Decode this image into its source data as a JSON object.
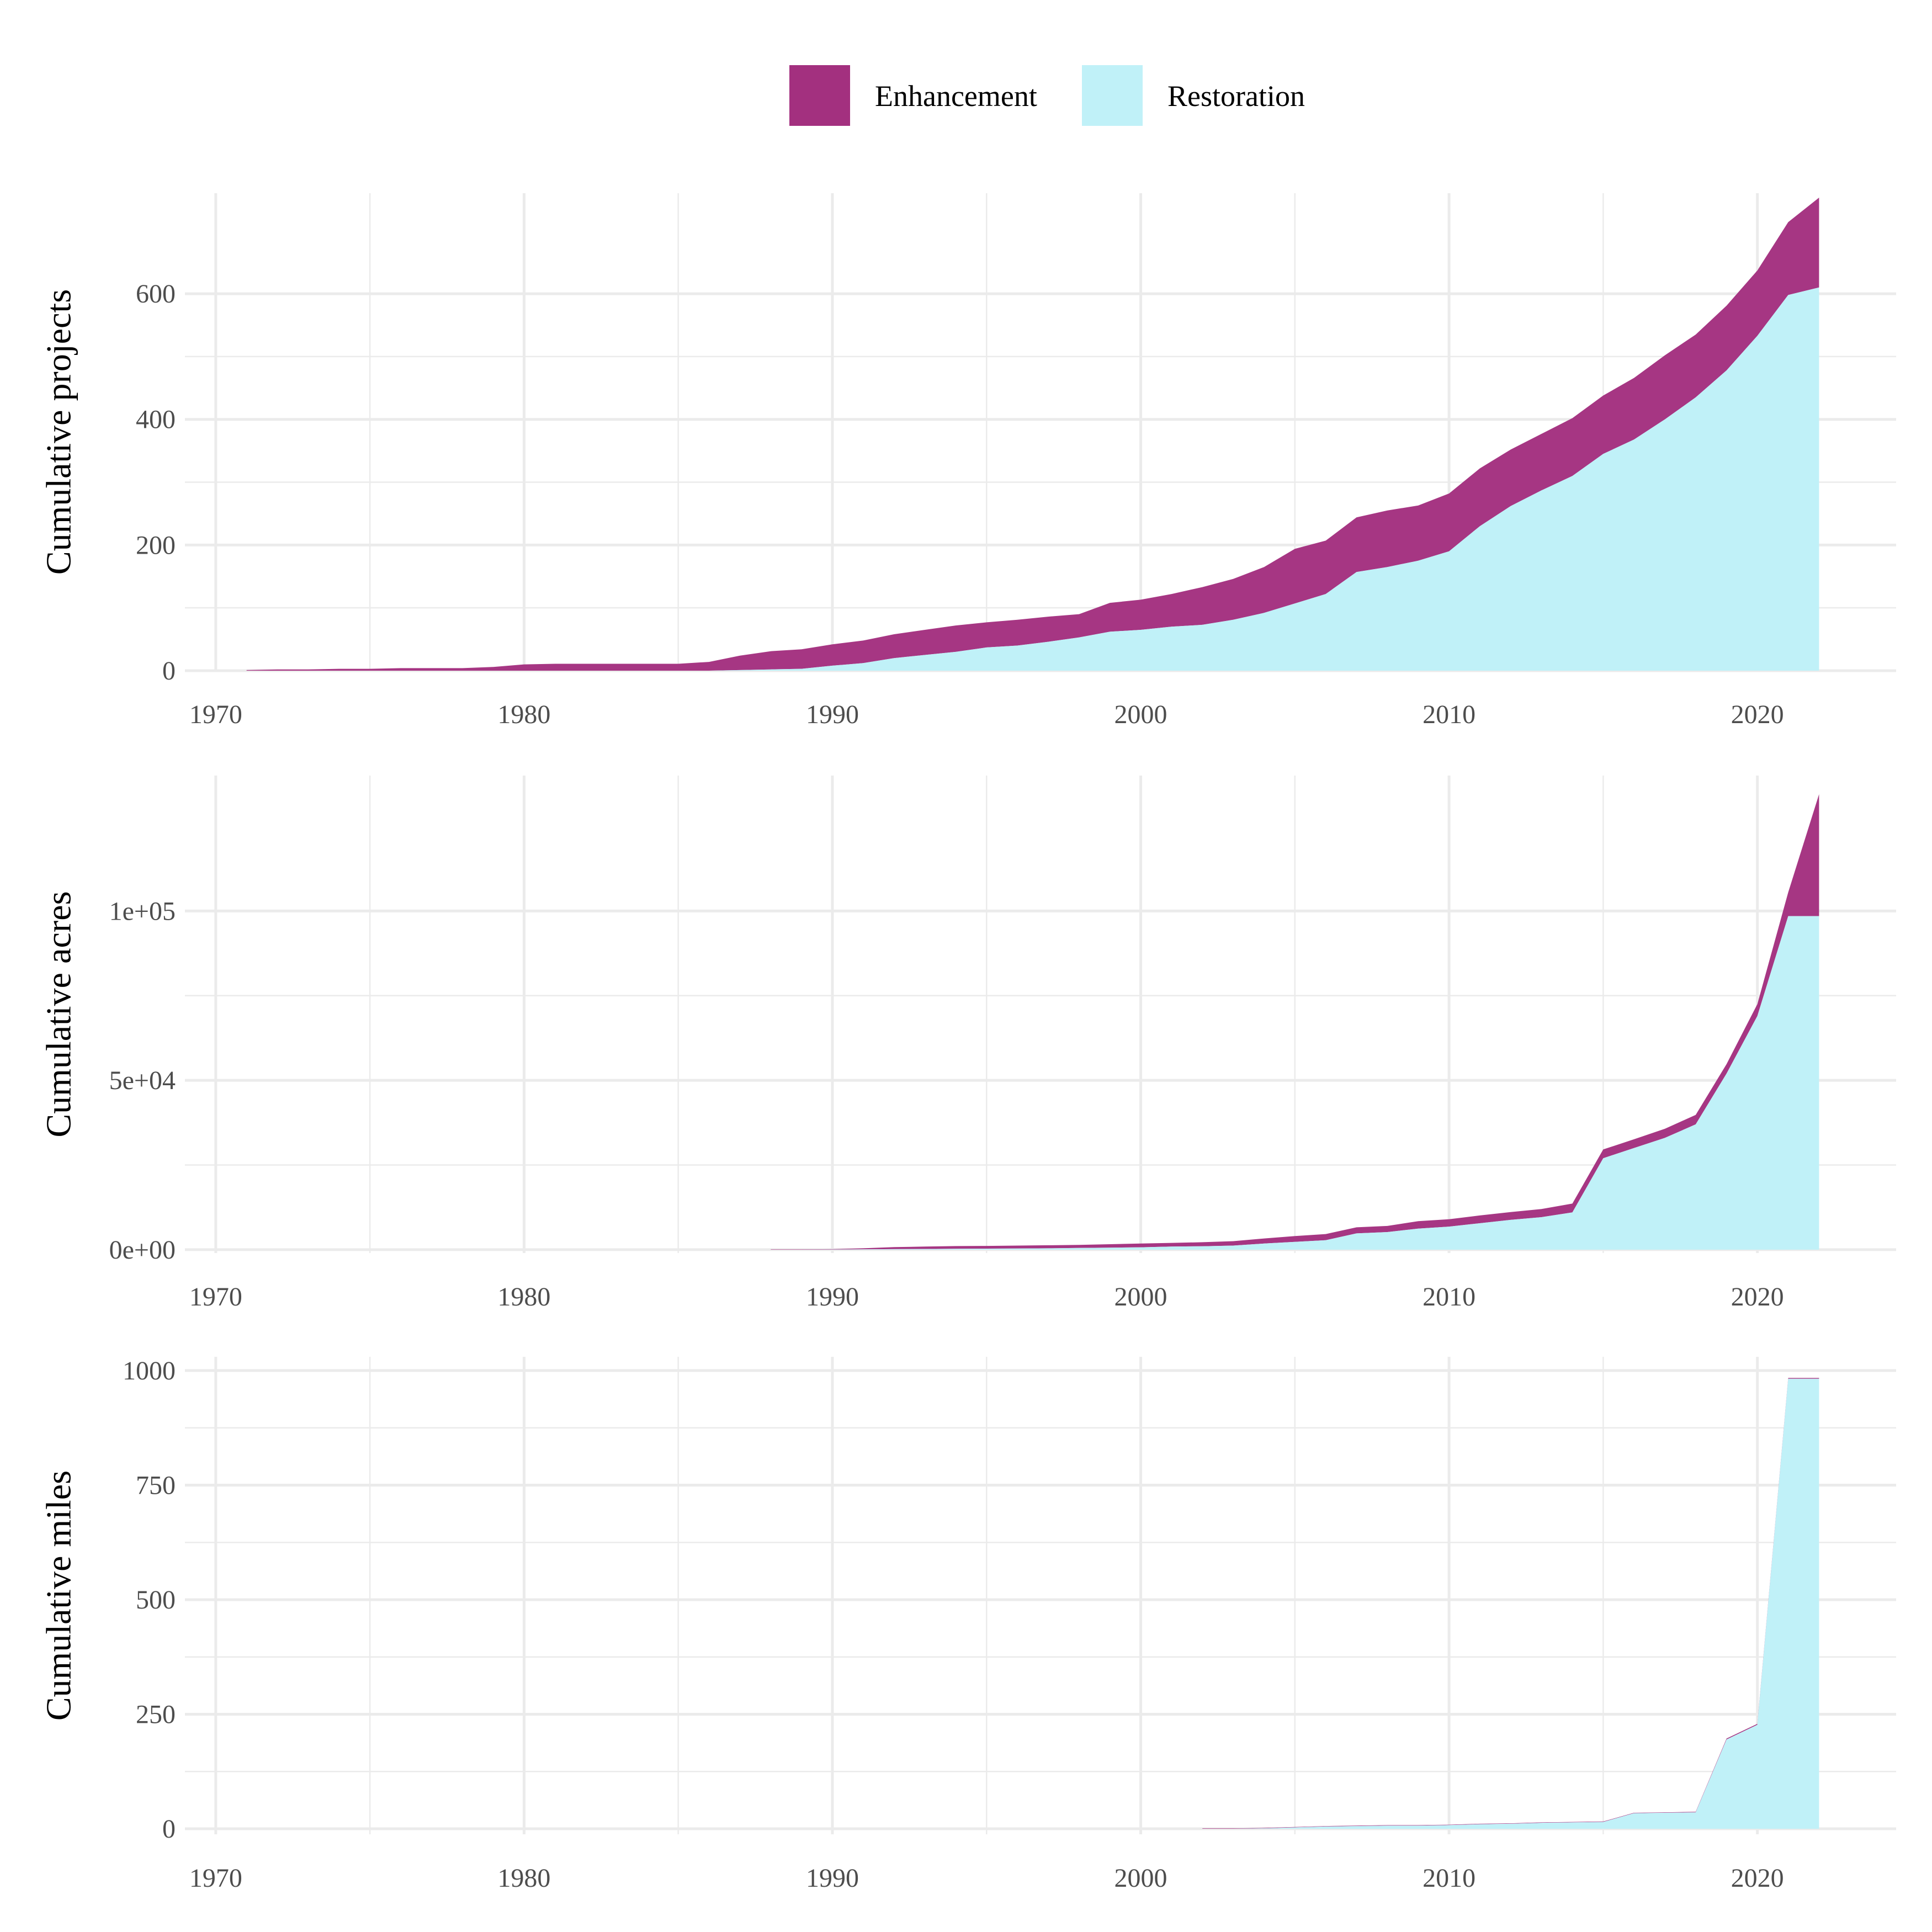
{
  "colors": {
    "Enhancement": "#a3307f",
    "Restoration": "#c0f1f8"
  },
  "legend": {
    "position": "top",
    "entries": [
      "Enhancement",
      "Restoration"
    ]
  },
  "chart_data": [
    {
      "type": "area",
      "stacked": true,
      "ylabel": "Cumulative projects",
      "ylim": [
        0,
        760
      ],
      "yticks": [
        0,
        200,
        400,
        600
      ],
      "ytick_labels": [
        "0",
        "200",
        "400",
        "600"
      ],
      "xlim": [
        1969,
        2024.5
      ],
      "xticks": [
        1970,
        1980,
        1990,
        2000,
        2010,
        2020
      ],
      "xtick_labels": [
        "1970",
        "1980",
        "1990",
        "2000",
        "2010",
        "2020"
      ],
      "grid": true,
      "series": [
        {
          "name": "Restoration",
          "x": [
            1971,
            1972,
            1973,
            1974,
            1975,
            1976,
            1977,
            1978,
            1979,
            1980,
            1981,
            1982,
            1983,
            1984,
            1985,
            1986,
            1987,
            1988,
            1989,
            1990,
            1991,
            1992,
            1993,
            1994,
            1995,
            1996,
            1997,
            1998,
            1999,
            2000,
            2001,
            2002,
            2003,
            2004,
            2005,
            2006,
            2007,
            2008,
            2009,
            2010,
            2011,
            2012,
            2013,
            2014,
            2015,
            2016,
            2017,
            2018,
            2019,
            2020,
            2021,
            2022
          ],
          "values": [
            0,
            0,
            0,
            0,
            0,
            0,
            0,
            0,
            0,
            0,
            0,
            0,
            0,
            0,
            0,
            0,
            1,
            2,
            3,
            8,
            12,
            20,
            25,
            30,
            37,
            40,
            46,
            53,
            62,
            65,
            70,
            73,
            81,
            92,
            107,
            122,
            157,
            165,
            175,
            190,
            230,
            262,
            287,
            310,
            345,
            368,
            400,
            435,
            478,
            533,
            598,
            610
          ]
        },
        {
          "name": "Enhancement",
          "x": [
            1971,
            1972,
            1973,
            1974,
            1975,
            1976,
            1977,
            1978,
            1979,
            1980,
            1981,
            1982,
            1983,
            1984,
            1985,
            1986,
            1987,
            1988,
            1989,
            1990,
            1991,
            1992,
            1993,
            1994,
            1995,
            1996,
            1997,
            1998,
            1999,
            2000,
            2001,
            2002,
            2003,
            2004,
            2005,
            2006,
            2007,
            2008,
            2009,
            2010,
            2011,
            2012,
            2013,
            2014,
            2015,
            2016,
            2017,
            2018,
            2019,
            2020,
            2021,
            2022
          ],
          "values": [
            1,
            2,
            2,
            3,
            3,
            4,
            4,
            4,
            6,
            10,
            11,
            11,
            11,
            11,
            11,
            14,
            23,
            29,
            31,
            34,
            36,
            38,
            40,
            42,
            40,
            41,
            40,
            37,
            46,
            48,
            52,
            60,
            65,
            73,
            87,
            85,
            87,
            90,
            88,
            92,
            92,
            90,
            90,
            92,
            93,
            98,
            102,
            100,
            103,
            104,
            116,
            143
          ]
        }
      ]
    },
    {
      "type": "area",
      "stacked": true,
      "ylabel": "Cumulative acres",
      "ylim": [
        -1000,
        140000
      ],
      "yticks": [
        0,
        50000,
        100000
      ],
      "ytick_labels": [
        "0e+00",
        "5e+04",
        "1e+05"
      ],
      "xlim": [
        1969,
        2024.5
      ],
      "xticks": [
        1970,
        1980,
        1990,
        2000,
        2010,
        2020
      ],
      "xtick_labels": [
        "1970",
        "1980",
        "1990",
        "2000",
        "2010",
        "2020"
      ],
      "grid": true,
      "series": [
        {
          "name": "Restoration",
          "x": [
            1988,
            1989,
            1990,
            1991,
            1992,
            1993,
            1994,
            1995,
            1996,
            1997,
            1998,
            1999,
            2000,
            2001,
            2002,
            2003,
            2004,
            2005,
            2006,
            2007,
            2008,
            2009,
            2010,
            2011,
            2012,
            2013,
            2014,
            2015,
            2016,
            2017,
            2018,
            2019,
            2020,
            2021,
            2022
          ],
          "values": [
            0,
            0,
            50,
            100,
            150,
            200,
            250,
            300,
            350,
            400,
            500,
            600,
            700,
            900,
            1000,
            1200,
            1800,
            2300,
            2800,
            4800,
            5200,
            6200,
            6800,
            7800,
            8800,
            9600,
            11000,
            27000,
            30000,
            33000,
            37000,
            52000,
            69000,
            98500,
            98500
          ]
        },
        {
          "name": "Enhancement",
          "x": [
            1988,
            1989,
            1990,
            1991,
            1992,
            1993,
            1994,
            1995,
            1996,
            1997,
            1998,
            1999,
            2000,
            2001,
            2002,
            2003,
            2004,
            2005,
            2006,
            2007,
            2008,
            2009,
            2010,
            2011,
            2012,
            2013,
            2014,
            2015,
            2016,
            2017,
            2018,
            2019,
            2020,
            2021,
            2022
          ],
          "values": [
            100,
            100,
            100,
            300,
            600,
            700,
            800,
            800,
            850,
            900,
            900,
            1000,
            1100,
            1100,
            1200,
            1300,
            1500,
            1700,
            1800,
            1800,
            1800,
            2200,
            2200,
            2300,
            2300,
            2400,
            2600,
            2600,
            2600,
            2700,
            2800,
            2800,
            3500,
            7000,
            36000
          ]
        }
      ]
    },
    {
      "type": "area",
      "stacked": true,
      "ylabel": "Cumulative miles",
      "ylim": [
        -12,
        1030
      ],
      "yticks": [
        0,
        250,
        500,
        750,
        1000
      ],
      "ytick_labels": [
        "0",
        "250",
        "500",
        "750",
        "1000"
      ],
      "xlim": [
        1969,
        2024.5
      ],
      "xticks": [
        1970,
        1980,
        1990,
        2000,
        2010,
        2020
      ],
      "xtick_labels": [
        "1970",
        "1980",
        "1990",
        "2000",
        "2010",
        "2020"
      ],
      "grid": true,
      "series": [
        {
          "name": "Restoration",
          "x": [
            2002,
            2003,
            2004,
            2005,
            2006,
            2007,
            2008,
            2009,
            2010,
            2011,
            2012,
            2013,
            2014,
            2015,
            2016,
            2017,
            2018,
            2019,
            2020,
            2021,
            2022
          ],
          "values": [
            0,
            0,
            1,
            3,
            5,
            6,
            7,
            7,
            8,
            10,
            11,
            13,
            14,
            15,
            34,
            35,
            36,
            195,
            227,
            982,
            982
          ]
        },
        {
          "name": "Enhancement",
          "x": [
            2002,
            2003,
            2004,
            2005,
            2006,
            2007,
            2008,
            2009,
            2010,
            2011,
            2012,
            2013,
            2014,
            2015,
            2016,
            2017,
            2018,
            2019,
            2020,
            2021,
            2022
          ],
          "values": [
            1,
            1,
            1,
            1,
            1,
            1,
            1,
            1,
            1,
            1,
            1,
            1,
            1,
            1,
            1,
            1,
            1,
            2,
            2,
            2,
            2
          ]
        }
      ]
    }
  ]
}
